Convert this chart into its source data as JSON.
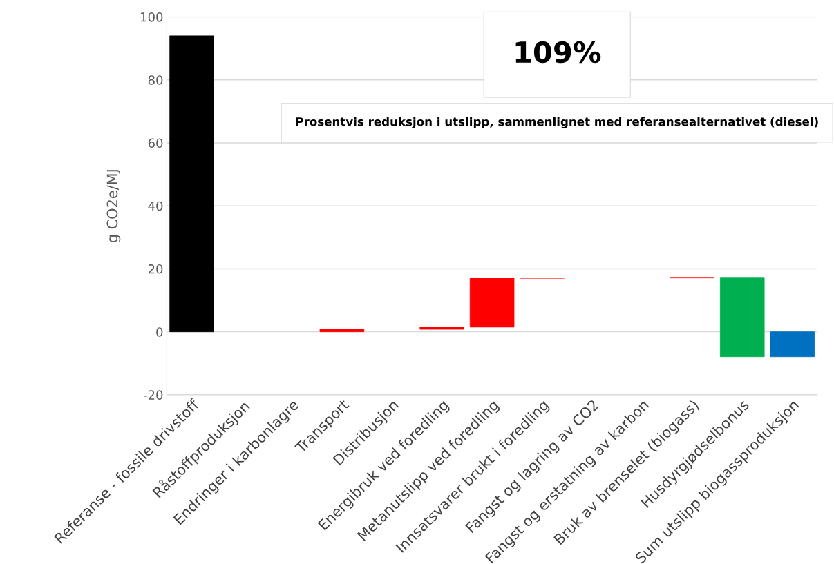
{
  "chart_data": {
    "type": "bar",
    "ylabel": "g CO2e/MJ",
    "categories": [
      "Referanse - fossile drivstoff",
      "Råstoffproduksjon",
      "Endringer i karbonlagre",
      "Transport",
      "Distribusjon",
      "Energibruk ved foredling",
      "Metanutslipp ved foredling",
      "Innsatsvarer brukt i foredling",
      "Fangst og lagring av CO2",
      "Fangst og erstatning av karbon",
      "Bruk av brenselet (biogass)",
      "Husdyrgjødselbonus",
      "Sum utslipp biogassproduksjon"
    ],
    "values": [
      94,
      null,
      null,
      0.8,
      null,
      0.7,
      15.5,
      0.1,
      null,
      null,
      0.2,
      -25.2,
      -7.9
    ],
    "base": [
      0,
      null,
      null,
      0,
      null,
      0.8,
      1.5,
      17.0,
      null,
      null,
      17.1,
      17.3,
      0
    ],
    "colors": [
      "#000000",
      null,
      null,
      "#ff0000",
      null,
      "#ff0000",
      "#ff0000",
      "#ff0000",
      null,
      null,
      "#ff0000",
      "#00b050",
      "#0070c0"
    ],
    "ylim": [
      -20,
      100
    ],
    "yticks": [
      -20,
      0,
      20,
      40,
      60,
      80,
      100
    ],
    "grid": "y",
    "annotations": [
      "109%",
      "Prosentvis reduksjon i utslipp, sammenlignet med referansealternativet (diesel)"
    ]
  }
}
